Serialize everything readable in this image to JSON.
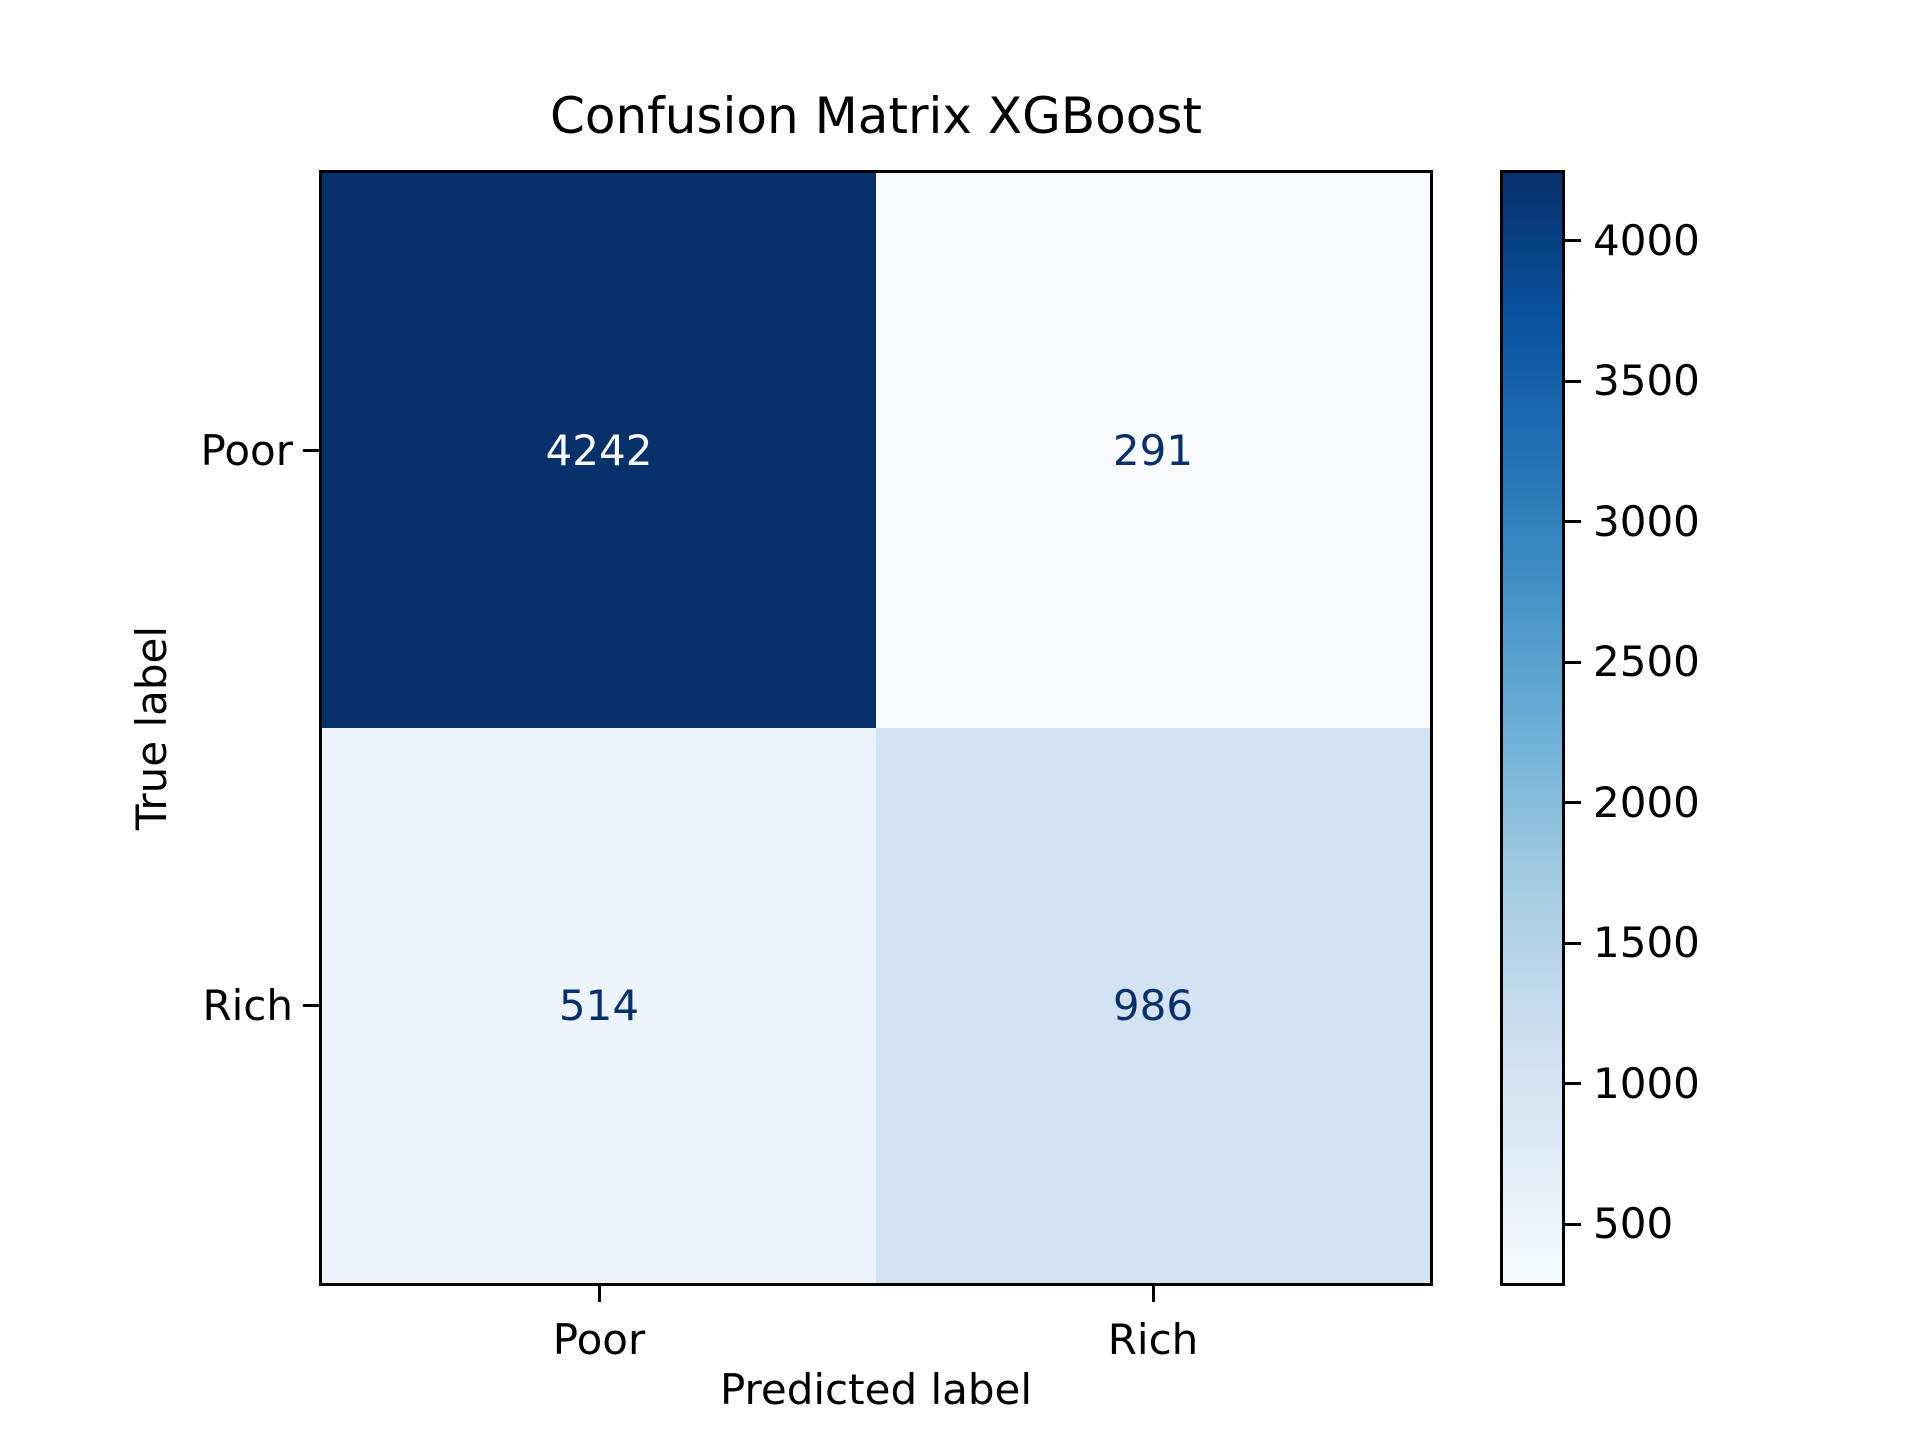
{
  "chart_data": {
    "type": "heatmap",
    "title": "Confusion Matrix XGBoost",
    "xlabel": "Predicted label",
    "ylabel": "True label",
    "x_tick_labels": [
      "Poor",
      "Rich"
    ],
    "y_tick_labels": [
      "Poor",
      "Rich"
    ],
    "matrix": [
      [
        4242,
        291
      ],
      [
        514,
        986
      ]
    ],
    "vmin": 291,
    "vmax": 4242,
    "colorbar_ticks": [
      4000,
      3500,
      3000,
      2500,
      2000,
      1500,
      1000,
      500
    ],
    "colormap": "Blues",
    "colormap_stops": [
      "#f7fbff",
      "#deebf7",
      "#c6dbef",
      "#9ecae1",
      "#6baed6",
      "#4292c6",
      "#2171b5",
      "#08519c",
      "#08306b"
    ],
    "grid": false,
    "legend": "colorbar-right",
    "cells": [
      {
        "row": "Poor",
        "col": "Poor",
        "value": 4242,
        "bg": "#08306b",
        "fg": "#f7fbff"
      },
      {
        "row": "Poor",
        "col": "Rich",
        "value": 291,
        "bg": "#f7fbff",
        "fg": "#08306b"
      },
      {
        "row": "Rich",
        "col": "Poor",
        "value": 514,
        "bg": "#ecf3fb",
        "fg": "#08306b"
      },
      {
        "row": "Rich",
        "col": "Rich",
        "value": 986,
        "bg": "#d3e3f3",
        "fg": "#08306b"
      }
    ]
  }
}
